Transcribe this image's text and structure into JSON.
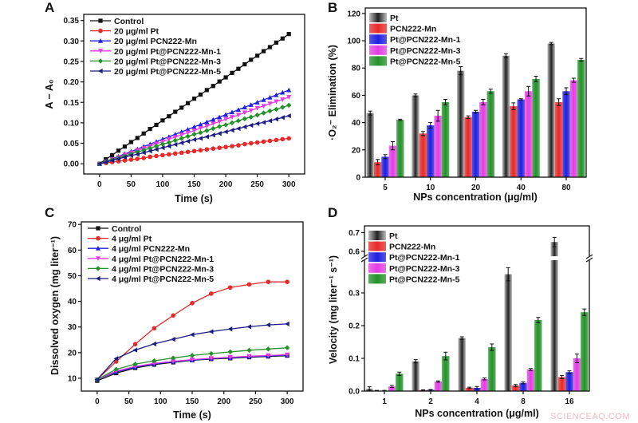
{
  "panels": {
    "a": "A",
    "b": "B",
    "c": "C",
    "d": "D"
  },
  "watermark": "SCIENCEAQ.COM",
  "colors": {
    "black": "#111111",
    "red": "#e62a2a",
    "blue": "#1f1fe0",
    "magenta": "#e23ee2",
    "green": "#24912a",
    "navy": "#1c1c82",
    "grey": "#3a3a3a"
  },
  "chart_data": [
    {
      "type": "line",
      "panel": "A",
      "xlabel": "Time (s)",
      "ylabel": "A − A₀",
      "xlim": [
        -25,
        325
      ],
      "ylim": [
        -0.025,
        0.365
      ],
      "xticks": [
        0,
        50,
        100,
        150,
        200,
        250,
        300
      ],
      "yticks": [
        "0.00",
        "0.05",
        "0.10",
        "0.15",
        "0.20",
        "0.25",
        "0.30",
        "0.35"
      ],
      "legend": "top-left",
      "grid": false,
      "x": [
        0,
        10,
        20,
        30,
        40,
        50,
        60,
        70,
        80,
        90,
        100,
        110,
        120,
        130,
        140,
        150,
        160,
        170,
        180,
        190,
        200,
        210,
        220,
        230,
        240,
        250,
        260,
        270,
        280,
        290,
        300
      ],
      "series": [
        {
          "name": "Control",
          "color": "#111111",
          "marker": "square",
          "values": [
            0,
            0.011,
            0.021,
            0.032,
            0.042,
            0.053,
            0.063,
            0.074,
            0.085,
            0.095,
            0.106,
            0.116,
            0.127,
            0.137,
            0.148,
            0.159,
            0.169,
            0.18,
            0.19,
            0.201,
            0.211,
            0.222,
            0.232,
            0.243,
            0.254,
            0.264,
            0.275,
            0.285,
            0.296,
            0.306,
            0.317
          ]
        },
        {
          "name": "20 μg/ml Pt",
          "color": "#e62a2a",
          "marker": "circle",
          "values": [
            0,
            0.002,
            0.004,
            0.006,
            0.008,
            0.01,
            0.012,
            0.014,
            0.017,
            0.019,
            0.021,
            0.023,
            0.025,
            0.027,
            0.029,
            0.031,
            0.033,
            0.035,
            0.037,
            0.039,
            0.041,
            0.043,
            0.045,
            0.048,
            0.05,
            0.052,
            0.054,
            0.056,
            0.058,
            0.06,
            0.062
          ]
        },
        {
          "name": "20 μg/ml PCN222-Mn",
          "color": "#1f1fe0",
          "marker": "triangle-up",
          "values": [
            0,
            0.006,
            0.012,
            0.018,
            0.024,
            0.03,
            0.036,
            0.042,
            0.048,
            0.054,
            0.06,
            0.066,
            0.072,
            0.078,
            0.084,
            0.09,
            0.096,
            0.102,
            0.108,
            0.114,
            0.12,
            0.126,
            0.132,
            0.138,
            0.144,
            0.15,
            0.156,
            0.162,
            0.168,
            0.174,
            0.18
          ]
        },
        {
          "name": "20 μg/ml Pt@PCN222-Mn-1",
          "color": "#e23ee2",
          "marker": "triangle-down",
          "values": [
            0,
            0.005,
            0.011,
            0.016,
            0.022,
            0.027,
            0.033,
            0.038,
            0.043,
            0.049,
            0.054,
            0.06,
            0.065,
            0.071,
            0.076,
            0.081,
            0.087,
            0.092,
            0.098,
            0.103,
            0.109,
            0.114,
            0.119,
            0.125,
            0.13,
            0.136,
            0.141,
            0.147,
            0.152,
            0.157,
            0.163
          ]
        },
        {
          "name": "20 μg/ml Pt@PCN222-Mn-3",
          "color": "#24912a",
          "marker": "diamond",
          "values": [
            0,
            0.005,
            0.01,
            0.014,
            0.019,
            0.024,
            0.029,
            0.033,
            0.038,
            0.043,
            0.048,
            0.052,
            0.057,
            0.062,
            0.067,
            0.072,
            0.076,
            0.081,
            0.086,
            0.091,
            0.095,
            0.1,
            0.105,
            0.11,
            0.114,
            0.119,
            0.124,
            0.129,
            0.133,
            0.138,
            0.143
          ]
        },
        {
          "name": "20 μg/ml Pt@PCN222-Mn-5",
          "color": "#1c1c82",
          "marker": "triangle-left",
          "values": [
            0,
            0.004,
            0.008,
            0.012,
            0.016,
            0.02,
            0.023,
            0.027,
            0.031,
            0.035,
            0.039,
            0.043,
            0.047,
            0.051,
            0.055,
            0.059,
            0.062,
            0.066,
            0.07,
            0.074,
            0.078,
            0.082,
            0.086,
            0.09,
            0.094,
            0.098,
            0.101,
            0.105,
            0.109,
            0.113,
            0.117
          ]
        }
      ]
    },
    {
      "type": "bar",
      "panel": "B",
      "xlabel": "NPs concentration (μg/ml)",
      "ylabel": "·O₂⁻ Elimination (%)",
      "ylim": [
        0,
        124
      ],
      "yticks": [
        "0",
        "20",
        "40",
        "60",
        "80",
        "100",
        "120"
      ],
      "legend": "top-left",
      "grid": false,
      "categories": [
        "5",
        "10",
        "20",
        "40",
        "80"
      ],
      "series": [
        {
          "name": "Pt",
          "color": "#3a3a3a",
          "values": [
            47,
            60,
            78,
            89,
            98
          ],
          "errors": [
            1.5,
            1,
            3,
            1.5,
            0.8
          ]
        },
        {
          "name": "PCN222-Mn",
          "color": "#e62a2a",
          "values": [
            11,
            32,
            44,
            52,
            55
          ],
          "errors": [
            2,
            1.5,
            1,
            2.5,
            2.5
          ]
        },
        {
          "name": "Pt@PCN222-Mn-1",
          "color": "#1f1fe0",
          "values": [
            15,
            38,
            48,
            57,
            63
          ],
          "errors": [
            1.5,
            2,
            1,
            0.5,
            2.5
          ]
        },
        {
          "name": "Pt@PCN222-Mn-3",
          "color": "#e23ee2",
          "values": [
            23,
            45,
            55,
            63,
            71
          ],
          "errors": [
            3,
            4,
            2,
            3.5,
            1.5
          ]
        },
        {
          "name": "Pt@PCN222-Mn-5",
          "color": "#24912a",
          "values": [
            42,
            55,
            63,
            72,
            86
          ],
          "errors": [
            0.5,
            2,
            1.5,
            2,
            1
          ]
        }
      ]
    },
    {
      "type": "line",
      "panel": "C",
      "xlabel": "Time (s)",
      "ylabel": "Dissolved oxygen (mg liter⁻¹)",
      "xlim": [
        -25,
        325
      ],
      "ylim": [
        5,
        71
      ],
      "xticks": [
        0,
        50,
        100,
        150,
        200,
        250,
        300
      ],
      "yticks": [
        "10",
        "20",
        "30",
        "40",
        "50",
        "60",
        "70"
      ],
      "legend": "top-left",
      "grid": false,
      "x": [
        0,
        30,
        60,
        90,
        120,
        150,
        180,
        210,
        240,
        270,
        300
      ],
      "series": [
        {
          "name": "Control",
          "color": "#111111",
          "marker": "square",
          "values": [
            9,
            12,
            14,
            15.3,
            16.2,
            17,
            17.5,
            17.8,
            18.2,
            18.5,
            18.8
          ]
        },
        {
          "name": "4 μg/ml Pt",
          "color": "#e62a2a",
          "marker": "circle",
          "values": [
            9.5,
            16.5,
            23.3,
            29.5,
            34.5,
            39.3,
            43,
            45.4,
            46.6,
            47.6,
            47.6
          ]
        },
        {
          "name": "4 μg/ml PCN222-Mn",
          "color": "#1f1fe0",
          "marker": "triangle-up",
          "values": [
            9.5,
            12.5,
            14.3,
            15.6,
            16.5,
            17.1,
            17.7,
            18,
            18.4,
            18.7,
            19
          ]
        },
        {
          "name": "4 μg/ml Pt@PCN222-Mn-1",
          "color": "#e23ee2",
          "marker": "triangle-down",
          "values": [
            9.5,
            12.8,
            14.6,
            15.8,
            16.6,
            17.3,
            17.8,
            18.2,
            18.6,
            18.9,
            19.2
          ]
        },
        {
          "name": "4 μg/ml Pt@PCN222-Mn-3",
          "color": "#24912a",
          "marker": "diamond",
          "values": [
            9.5,
            13.5,
            15.5,
            16.8,
            17.9,
            18.9,
            19.6,
            20.3,
            20.9,
            21.4,
            21.9
          ]
        },
        {
          "name": "4 μg/ml Pt@PCN222-Mn-5",
          "color": "#1c1c82",
          "marker": "triangle-left",
          "values": [
            9.5,
            17.7,
            21,
            23.4,
            25.2,
            27,
            28.2,
            29.2,
            30.1,
            30.8,
            31.2
          ]
        }
      ]
    },
    {
      "type": "bar",
      "panel": "D",
      "xlabel": "NPs concentration (μg/ml)",
      "ylabel": "Velocity (mg liter⁻¹ s⁻¹)",
      "y_axis_break": [
        0.4,
        0.57
      ],
      "ylim": [
        0,
        0.736
      ],
      "yticks": [
        "0.0",
        "0.1",
        "0.2",
        "0.3",
        "0.6",
        "0.7"
      ],
      "legend": "top-left",
      "grid": false,
      "categories": [
        "1",
        "2",
        "4",
        "8",
        "16"
      ],
      "series": [
        {
          "name": "Pt",
          "color": "#3a3a3a",
          "values": [
            0.007,
            0.091,
            0.162,
            0.357,
            0.65
          ],
          "errors": [
            0.006,
            0.005,
            0.004,
            0.02,
            0.025
          ]
        },
        {
          "name": "PCN222-Mn",
          "color": "#e62a2a",
          "values": [
            0.001,
            0.003,
            0.01,
            0.017,
            0.043
          ],
          "errors": [
            0.001,
            0.001,
            0.002,
            0.003,
            0.005
          ]
        },
        {
          "name": "Pt@PCN222-Mn-1",
          "color": "#1f1fe0",
          "values": [
            0.001,
            0.004,
            0.01,
            0.025,
            0.058
          ],
          "errors": [
            0.001,
            0.001,
            0.004,
            0.003,
            0.004
          ]
        },
        {
          "name": "Pt@PCN222-Mn-3",
          "color": "#e23ee2",
          "values": [
            0.014,
            0.029,
            0.037,
            0.066,
            0.1
          ],
          "errors": [
            0.003,
            0.002,
            0.003,
            0.003,
            0.013
          ]
        },
        {
          "name": "Pt@PCN222-Mn-5",
          "color": "#24912a",
          "values": [
            0.053,
            0.107,
            0.134,
            0.217,
            0.241
          ],
          "errors": [
            0.005,
            0.012,
            0.01,
            0.008,
            0.01
          ]
        }
      ]
    }
  ]
}
